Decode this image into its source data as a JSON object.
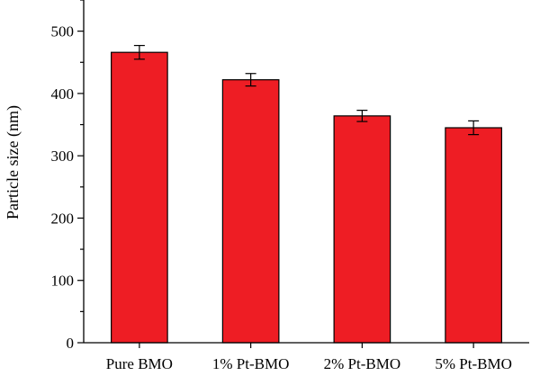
{
  "chart_data": {
    "type": "bar",
    "title": "",
    "xlabel": "",
    "ylabel": "Particle size (nm)",
    "categories": [
      "Pure BMO",
      "1% Pt-BMO",
      "2% Pt-BMO",
      "5% Pt-BMO"
    ],
    "values": [
      466,
      422,
      364,
      345
    ],
    "errors": [
      11,
      10,
      9,
      11
    ],
    "ylim": [
      0,
      550
    ],
    "yticks": [
      0,
      100,
      200,
      300,
      400,
      500
    ],
    "ytick_labels": [
      "0",
      "100",
      "200",
      "300",
      "400",
      "500"
    ],
    "bar_color": "#ee1d24",
    "grid": false,
    "legend": "none"
  }
}
